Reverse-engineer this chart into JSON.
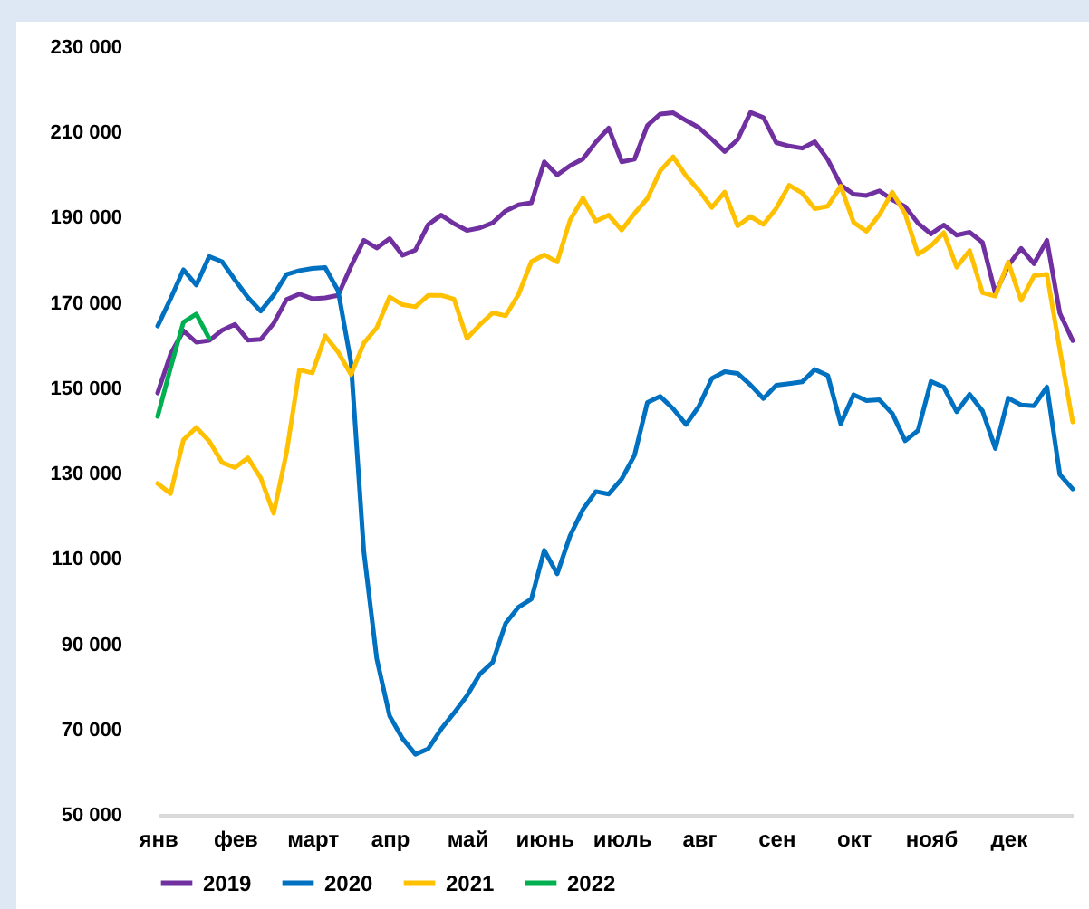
{
  "chart_data": {
    "type": "line",
    "legend": "bottom",
    "grid": false,
    "line_style": "solid",
    "marker": "none",
    "categories": [
      "янв",
      null,
      null,
      null,
      null,
      null,
      "фев",
      null,
      null,
      null,
      null,
      null,
      "март",
      null,
      null,
      null,
      null,
      null,
      "апр",
      null,
      null,
      null,
      null,
      null,
      "май",
      null,
      null,
      null,
      null,
      null,
      "июнь",
      null,
      null,
      null,
      null,
      null,
      "июль",
      null,
      null,
      null,
      null,
      null,
      "авг",
      null,
      null,
      null,
      null,
      null,
      "сен",
      null,
      null,
      null,
      null,
      null,
      "окт",
      null,
      null,
      null,
      null,
      null,
      "нояб",
      null,
      null,
      null,
      null,
      null,
      "дек",
      null,
      null,
      null,
      null,
      null
    ],
    "ylim": [
      50000,
      230000
    ],
    "yticks": [
      {
        "value": 50000,
        "label": "50 000"
      },
      {
        "value": 70000,
        "label": "70 000"
      },
      {
        "value": 90000,
        "label": "90 000"
      },
      {
        "value": 110000,
        "label": "110 000"
      },
      {
        "value": 130000,
        "label": "130 000"
      },
      {
        "value": 150000,
        "label": "150 000"
      },
      {
        "value": 170000,
        "label": "170 000"
      },
      {
        "value": 190000,
        "label": "190 000"
      },
      {
        "value": 210000,
        "label": "210 000"
      },
      {
        "value": 230000,
        "label": "230 000"
      }
    ],
    "series": [
      {
        "name": "2019",
        "color": "#7030a0",
        "values": [
          148900,
          158000,
          163500,
          160800,
          161200,
          163600,
          165000,
          161300,
          161500,
          165200,
          170800,
          172100,
          171000,
          171200,
          171800,
          178600,
          184700,
          182900,
          185100,
          181200,
          182400,
          188400,
          190600,
          188600,
          187000,
          187600,
          188800,
          191600,
          193000,
          193500,
          203100,
          200000,
          202200,
          203800,
          207700,
          211000,
          203100,
          203700,
          211600,
          214300,
          214600,
          212800,
          211100,
          208400,
          205500,
          208300,
          214700,
          213500,
          207600,
          206800,
          206300,
          207800,
          203600,
          197700,
          195500,
          195200,
          196300,
          194200,
          192600,
          188700,
          186200,
          188300,
          185900,
          186600,
          184200,
          172300,
          178800,
          182800,
          179200,
          184700,
          167600,
          161200
        ]
      },
      {
        "name": "2020",
        "color": "#0070c0",
        "values": [
          164600,
          171000,
          177800,
          174200,
          180900,
          179700,
          175400,
          171300,
          168100,
          171800,
          176700,
          177600,
          178100,
          178300,
          172900,
          156100,
          111700,
          86600,
          73200,
          67900,
          64200,
          65500,
          70100,
          73900,
          77900,
          83000,
          85800,
          94900,
          98700,
          100600,
          112000,
          106500,
          115400,
          121600,
          125800,
          125200,
          128700,
          134300,
          146700,
          148100,
          145200,
          141500,
          145800,
          152300,
          153900,
          153500,
          150800,
          147600,
          150700,
          151100,
          151500,
          154400,
          153000,
          141700,
          148500,
          147100,
          147300,
          144100,
          137700,
          140100,
          151600,
          150300,
          144500,
          148600,
          144700,
          135900,
          147700,
          146100,
          145900,
          150300,
          129800,
          126400
        ]
      },
      {
        "name": "2021",
        "color": "#ffc000",
        "values": [
          127700,
          125300,
          137900,
          140800,
          137600,
          132600,
          131400,
          133700,
          129000,
          120700,
          134900,
          154300,
          153600,
          162300,
          158500,
          153200,
          160600,
          164200,
          171400,
          169600,
          169100,
          171800,
          171800,
          170900,
          161700,
          164900,
          167700,
          167000,
          172000,
          179700,
          181300,
          179600,
          189400,
          194600,
          189200,
          190600,
          187100,
          191000,
          194500,
          201000,
          204300,
          199800,
          196400,
          192400,
          196000,
          188100,
          190300,
          188400,
          192200,
          197600,
          195800,
          192100,
          192700,
          197400,
          188900,
          186800,
          190700,
          196000,
          190900,
          181400,
          183400,
          186500,
          178400,
          182300,
          172400,
          171600,
          179600,
          170600,
          176400,
          176700,
          159100,
          142100
        ]
      },
      {
        "name": "2022",
        "color": "#00b050",
        "values": [
          143400,
          154800,
          165500,
          167400,
          161700,
          null,
          null,
          null,
          null,
          null,
          null,
          null,
          null,
          null,
          null,
          null,
          null,
          null,
          null,
          null,
          null,
          null,
          null,
          null,
          null,
          null,
          null,
          null,
          null,
          null,
          null,
          null,
          null,
          null,
          null,
          null,
          null,
          null,
          null,
          null,
          null,
          null,
          null,
          null,
          null,
          null,
          null,
          null,
          null,
          null,
          null,
          null,
          null,
          null,
          null,
          null,
          null,
          null,
          null,
          null,
          null,
          null,
          null,
          null,
          null,
          null,
          null,
          null,
          null,
          null,
          null,
          null
        ]
      }
    ]
  }
}
